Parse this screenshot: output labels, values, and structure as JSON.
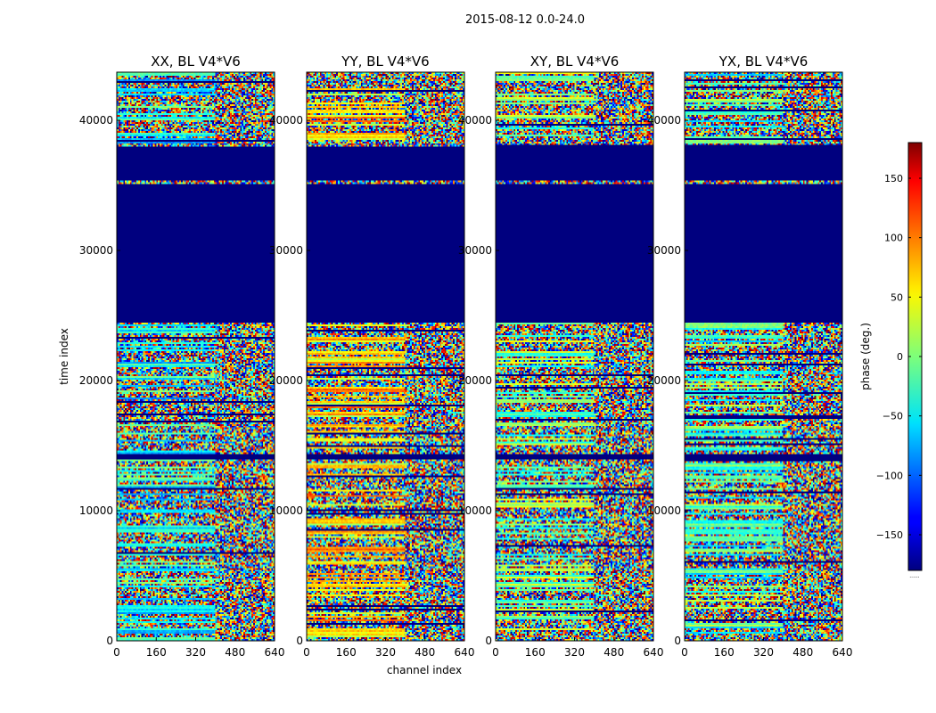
{
  "figure": {
    "suptitle": "2015-08-12 0.0-24.0"
  },
  "chart_data": {
    "type": "heatmap",
    "xlabel": "channel index",
    "ylabel": "time index",
    "xlim": [
      0,
      640
    ],
    "ylim": [
      0,
      43700
    ],
    "xticks": [
      0,
      160,
      320,
      480,
      640
    ],
    "yticks": [
      0,
      10000,
      20000,
      30000,
      40000
    ],
    "ytick_labels": [
      "0",
      "10000",
      "20000",
      "30000",
      "40000"
    ],
    "panels": [
      {
        "title": "XX, BL V4*V6",
        "pol": "XX"
      },
      {
        "title": "YY, BL V4*V6",
        "pol": "YY"
      },
      {
        "title": "XY, BL V4*V6",
        "pol": "XY"
      },
      {
        "title": "YX, BL V4*V6",
        "pol": "YX"
      }
    ],
    "masked_time_ranges": [
      [
        24400,
        35100
      ],
      [
        35400,
        37900
      ],
      [
        13900,
        14300
      ]
    ],
    "colorbar": {
      "label": "phase (deg.)",
      "range": [
        -180,
        180
      ],
      "ticks": [
        -150,
        -100,
        -50,
        0,
        50,
        100,
        150
      ],
      "tick_labels": [
        "−150",
        "−100",
        "−50",
        "0",
        "50",
        "100",
        "150"
      ],
      "cmap": "jet",
      "footnote": "......"
    }
  }
}
